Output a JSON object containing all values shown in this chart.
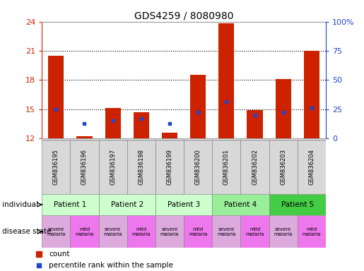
{
  "title": "GDS4259 / 8080980",
  "samples": [
    "GSM836195",
    "GSM836196",
    "GSM836197",
    "GSM836198",
    "GSM836199",
    "GSM836200",
    "GSM836201",
    "GSM836202",
    "GSM836203",
    "GSM836204"
  ],
  "bar_heights": [
    20.5,
    12.2,
    15.1,
    14.7,
    12.6,
    18.5,
    23.8,
    14.9,
    18.1,
    21.0
  ],
  "blue_positions": [
    15.0,
    13.5,
    13.8,
    14.0,
    13.5,
    14.7,
    15.8,
    14.4,
    14.7,
    15.1
  ],
  "ymin": 12,
  "ymax": 24,
  "yticks": [
    12,
    15,
    18,
    21,
    24
  ],
  "right_yticks": [
    0,
    25,
    50,
    75,
    100
  ],
  "bar_color": "#cc2200",
  "blue_color": "#2244cc",
  "bar_width": 0.55,
  "patients": [
    {
      "label": "Patient 1",
      "cols": [
        0,
        1
      ],
      "color": "#ccffcc"
    },
    {
      "label": "Patient 2",
      "cols": [
        2,
        3
      ],
      "color": "#ccffcc"
    },
    {
      "label": "Patient 3",
      "cols": [
        4,
        5
      ],
      "color": "#ccffcc"
    },
    {
      "label": "Patient 4",
      "cols": [
        6,
        7
      ],
      "color": "#99ee99"
    },
    {
      "label": "Patient 5",
      "cols": [
        8,
        9
      ],
      "color": "#44cc44"
    }
  ],
  "disease_states": [
    {
      "label": "severe\nmalaria",
      "color": "#ddaadd"
    },
    {
      "label": "mild\nmalaria",
      "color": "#ee77ee"
    },
    {
      "label": "severe\nmalaria",
      "color": "#ddaadd"
    },
    {
      "label": "mild\nmalaria",
      "color": "#ee77ee"
    },
    {
      "label": "severe\nmalaria",
      "color": "#ddaadd"
    },
    {
      "label": "mild\nmalaria",
      "color": "#ee77ee"
    },
    {
      "label": "severe\nmalaria",
      "color": "#ddaadd"
    },
    {
      "label": "mild\nmalaria",
      "color": "#ee77ee"
    },
    {
      "label": "severe\nmalaria",
      "color": "#ddaadd"
    },
    {
      "label": "mild\nmalaria",
      "color": "#ee77ee"
    }
  ],
  "legend_count_color": "#cc2200",
  "legend_blue_color": "#2244cc"
}
